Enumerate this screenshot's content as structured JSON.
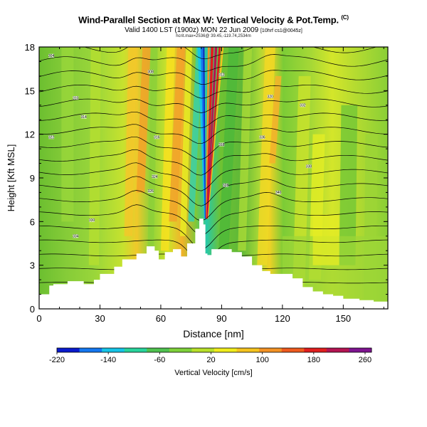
{
  "title": {
    "main": "Wind-Parallel Section at Max W: Vertical Velocity & Pot.Temp.",
    "tag": "(C)",
    "valid": "Valid 1400 LST (1900z) MON 22 Jun 2009",
    "valid_note": "[10hrf cs1@0045z]",
    "source": "hcrit.max=2536@ 39.45,-119.74,2534m"
  },
  "chart_data": {
    "type": "heatmap",
    "title": "Wind-Parallel Section at Max W: Vertical Velocity & Pot.Temp.",
    "xlabel": "Distance [nm]",
    "ylabel": "Height [Kft MSL]",
    "xlim": [
      0,
      172
    ],
    "ylim": [
      0,
      18
    ],
    "xticks": [
      0,
      30,
      60,
      90,
      120,
      150
    ],
    "yticks": [
      0,
      3,
      6,
      9,
      12,
      15,
      18
    ],
    "colorbar": {
      "label": "Vertical Velocity [cm/s]",
      "range": [
        -220,
        270
      ],
      "ticks": [
        -220,
        -140,
        -60,
        20,
        100,
        180,
        260
      ],
      "colors": [
        "#0a1acd",
        "#1477f0",
        "#16c4e6",
        "#28d49c",
        "#4fc24f",
        "#7ed13a",
        "#b8e02a",
        "#f0ec1c",
        "#f5c31e",
        "#f39224",
        "#ee5a1e",
        "#e01e1e",
        "#b41452",
        "#7e1490"
      ]
    },
    "terrain": {
      "x": [
        0,
        5,
        7,
        14,
        22,
        27,
        30,
        37,
        41,
        48,
        53,
        57,
        59,
        62,
        66,
        70,
        73,
        77,
        79,
        81,
        82,
        83,
        85,
        88,
        91,
        95,
        100,
        105,
        110,
        114,
        120,
        125,
        130,
        135,
        140,
        145,
        150,
        158,
        165,
        172
      ],
      "height_kft": [
        1.0,
        1.6,
        1.7,
        1.9,
        1.7,
        2.0,
        2.4,
        2.9,
        3.4,
        3.8,
        4.3,
        4.0,
        3.4,
        3.9,
        4.1,
        3.6,
        4.5,
        5.5,
        6.2,
        5.8,
        3.8,
        3.7,
        4.1,
        4.1,
        4.1,
        3.9,
        3.6,
        3.0,
        2.6,
        2.4,
        2.4,
        2.1,
        1.5,
        1.2,
        1.0,
        0.9,
        0.7,
        0.6,
        0.5,
        0.5
      ]
    },
    "updraft_core": {
      "x_center": 82,
      "base_kft": 6.2,
      "top_kft": 18,
      "max_velocity_cms": 270,
      "min_velocity_cms": -220
    },
    "isentropes_potential_temperature": {
      "labels": [
        "304",
        "308",
        "310",
        "312",
        "314",
        "316",
        "318",
        "320",
        "322",
        "324",
        "326",
        "328",
        "330",
        "332",
        "334",
        "336",
        "338",
        "340"
      ]
    }
  }
}
